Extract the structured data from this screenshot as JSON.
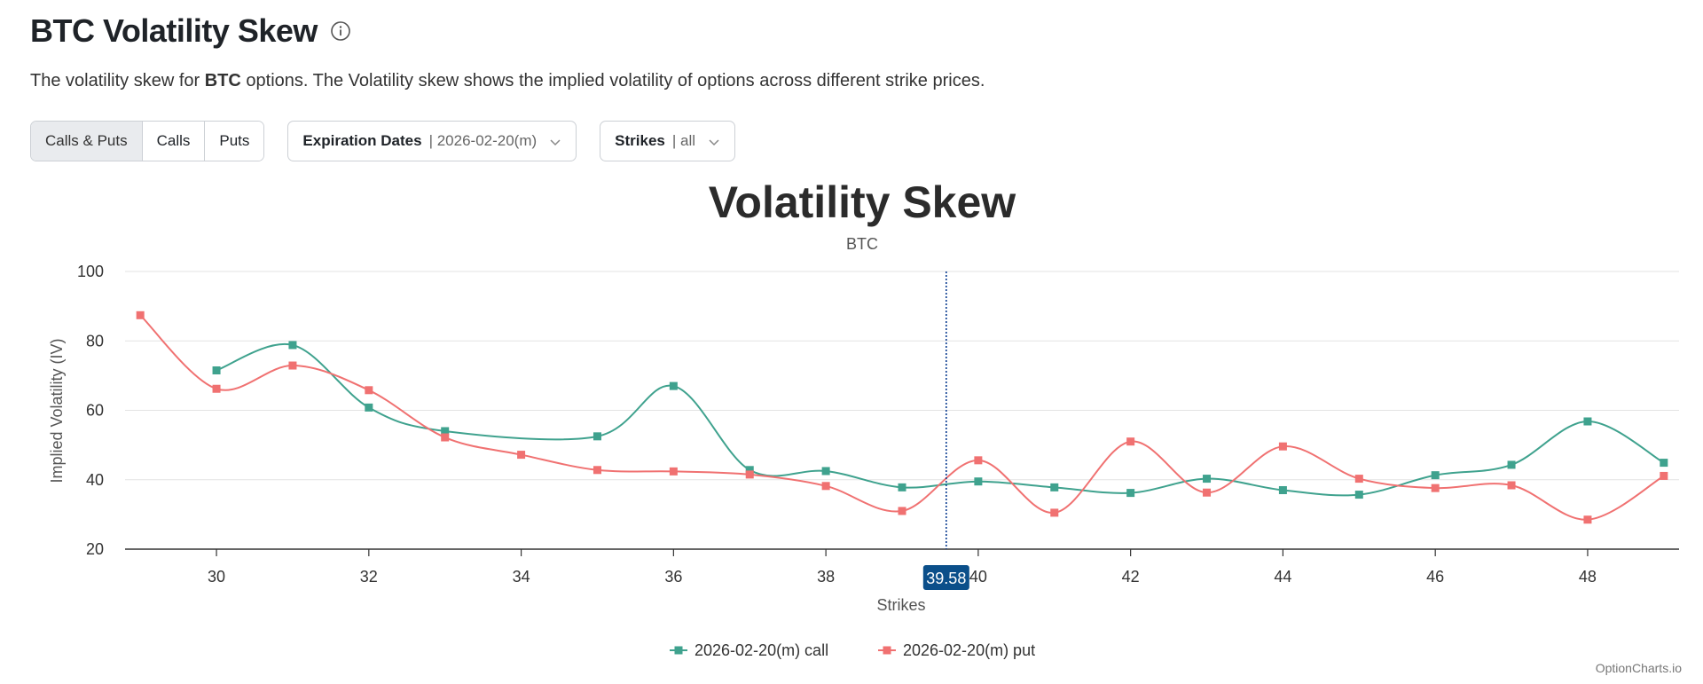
{
  "page": {
    "title": "BTC Volatility Skew",
    "description_pre": "The volatility skew for ",
    "description_bold": "BTC",
    "description_post": " options. The Volatility skew shows the implied volatility of options across different strike prices."
  },
  "controls": {
    "type_tabs": [
      "Calls & Puts",
      "Calls",
      "Puts"
    ],
    "active_tab": "Calls & Puts",
    "expiration": {
      "label": "Expiration Dates",
      "value": "| 2026-02-20(m)"
    },
    "strikes": {
      "label": "Strikes",
      "value": "| all"
    }
  },
  "icons": {
    "info": "info-circle-icon",
    "chevron": "chevron-down-icon"
  },
  "colors": {
    "call": "#3fa28e",
    "put": "#f07171",
    "crosshair": "#0b3d91",
    "tooltip_bg": "#0b4f8a"
  },
  "chart_data": {
    "type": "line",
    "title": "Volatility Skew",
    "subtitle": "BTC",
    "xlabel": "Strikes",
    "ylabel": "Implied Volatility (IV)",
    "xlim": [
      28.8,
      49.2
    ],
    "ylim": [
      20,
      100
    ],
    "xticks": [
      30,
      32,
      34,
      36,
      38,
      40,
      42,
      44,
      46,
      48
    ],
    "yticks": [
      20,
      40,
      60,
      80,
      100
    ],
    "grid": true,
    "legend_position": "bottom-center",
    "crosshair_x": 39.58,
    "crosshair_label": "39.58",
    "series": [
      {
        "name": "2026-02-20(m) call",
        "color_key": "call",
        "points": [
          [
            30,
            71.5
          ],
          [
            31,
            78.8
          ],
          [
            32,
            60.8
          ],
          [
            33,
            54.0
          ],
          [
            35,
            52.5
          ],
          [
            36,
            67.0
          ],
          [
            37,
            42.8
          ],
          [
            38,
            42.5
          ],
          [
            39,
            37.8
          ],
          [
            40,
            39.5
          ],
          [
            41,
            37.8
          ],
          [
            42,
            36.2
          ],
          [
            43,
            40.3
          ],
          [
            44,
            37.0
          ],
          [
            45,
            35.7
          ],
          [
            46,
            41.3
          ],
          [
            47,
            44.3
          ],
          [
            48,
            56.8
          ],
          [
            49,
            44.9
          ]
        ]
      },
      {
        "name": "2026-02-20(m) put",
        "color_key": "put",
        "points": [
          [
            29,
            87.4
          ],
          [
            30,
            66.2
          ],
          [
            31,
            72.9
          ],
          [
            32,
            65.8
          ],
          [
            33,
            52.2
          ],
          [
            34,
            47.2
          ],
          [
            35,
            42.8
          ],
          [
            36,
            42.4
          ],
          [
            37,
            41.5
          ],
          [
            38,
            38.2
          ],
          [
            39,
            31.0
          ],
          [
            40,
            45.6
          ],
          [
            41,
            30.5
          ],
          [
            42,
            51.0
          ],
          [
            43,
            36.3
          ],
          [
            44,
            49.6
          ],
          [
            45,
            40.3
          ],
          [
            46,
            37.6
          ],
          [
            47,
            38.4
          ],
          [
            48,
            28.5
          ],
          [
            49,
            41.1
          ]
        ]
      }
    ]
  },
  "footer": {
    "brand": "OptionCharts.io"
  }
}
